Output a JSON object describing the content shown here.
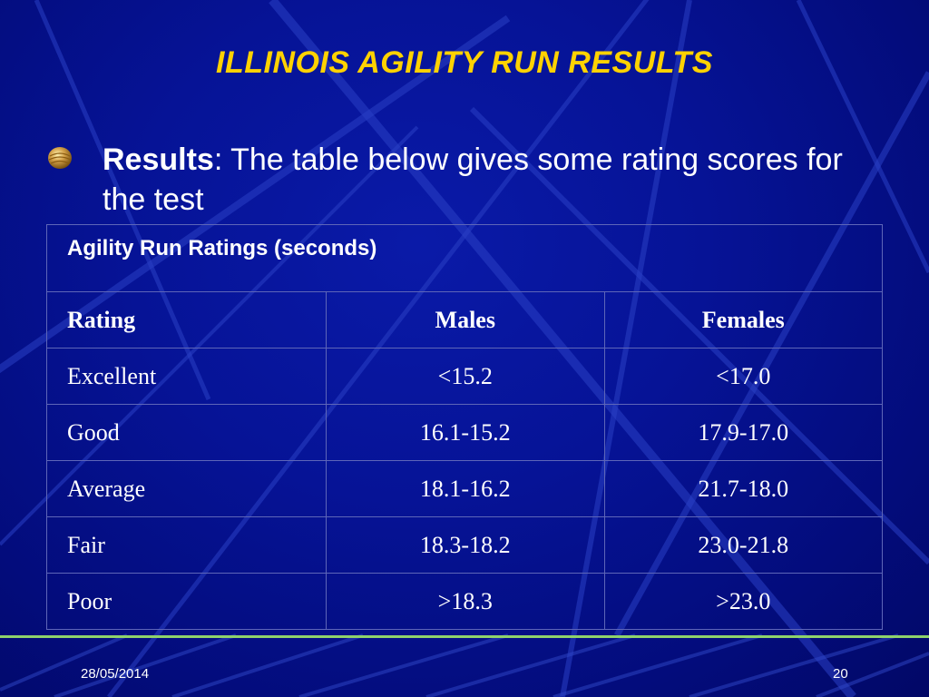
{
  "slide": {
    "title": "ILLINOIS AGILITY RUN RESULTS",
    "bullet": {
      "icon": "bronze-orb-bullet-icon",
      "lead": "Results",
      "text": ": The table below gives some rating scores for the test"
    },
    "table": {
      "caption": "Agility Run Ratings (seconds)",
      "headers": [
        "Rating",
        "Males",
        "Females"
      ],
      "rows": [
        [
          "Excellent",
          "<15.2",
          "<17.0"
        ],
        [
          "Good",
          "16.1-15.2",
          "17.9-17.0"
        ],
        [
          "Average",
          "18.1-16.2",
          "21.7-18.0"
        ],
        [
          "Fair",
          "18.3-18.2",
          "23.0-21.8"
        ],
        [
          "Poor",
          ">18.3",
          ">23.0"
        ]
      ]
    },
    "footer": {
      "date": "28/05/2014",
      "page": "20"
    }
  },
  "colors": {
    "background": "#061396",
    "title": "#ffd200",
    "text": "#ffffff",
    "divider": "#8fd26b",
    "table_border": "#5e66b8"
  }
}
